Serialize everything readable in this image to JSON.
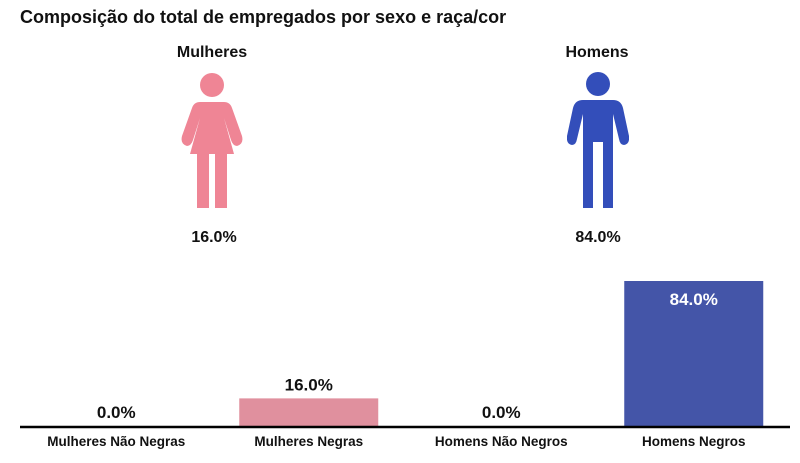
{
  "colors": {
    "women": "#ef8595",
    "men": "#334eba",
    "bar_women": "#e0909e",
    "bar_men": "#4455a8",
    "axis": "#000000"
  },
  "icons": {
    "women": "woman-icon",
    "men": "man-icon"
  },
  "groups": [
    {
      "label": "Mulheres",
      "value_label": "16.0%"
    },
    {
      "label": "Homens",
      "value_label": "84.0%"
    }
  ],
  "chart_data": {
    "type": "bar",
    "title": "Composição do total de empregados por sexo e raça/cor",
    "categories": [
      "Mulheres Não Negras",
      "Mulheres Negras",
      "Homens Não Negros",
      "Homens Negros"
    ],
    "values": [
      0.0,
      16.0,
      0.0,
      84.0
    ],
    "value_labels": [
      "0.0%",
      "16.0%",
      "0.0%",
      "84.0%"
    ],
    "bar_colors": [
      "#e0909e",
      "#e0909e",
      "#4455a8",
      "#4455a8"
    ],
    "ylim": [
      0,
      84
    ],
    "xlabel": "",
    "ylabel": "",
    "grid": false,
    "legend": "none"
  }
}
